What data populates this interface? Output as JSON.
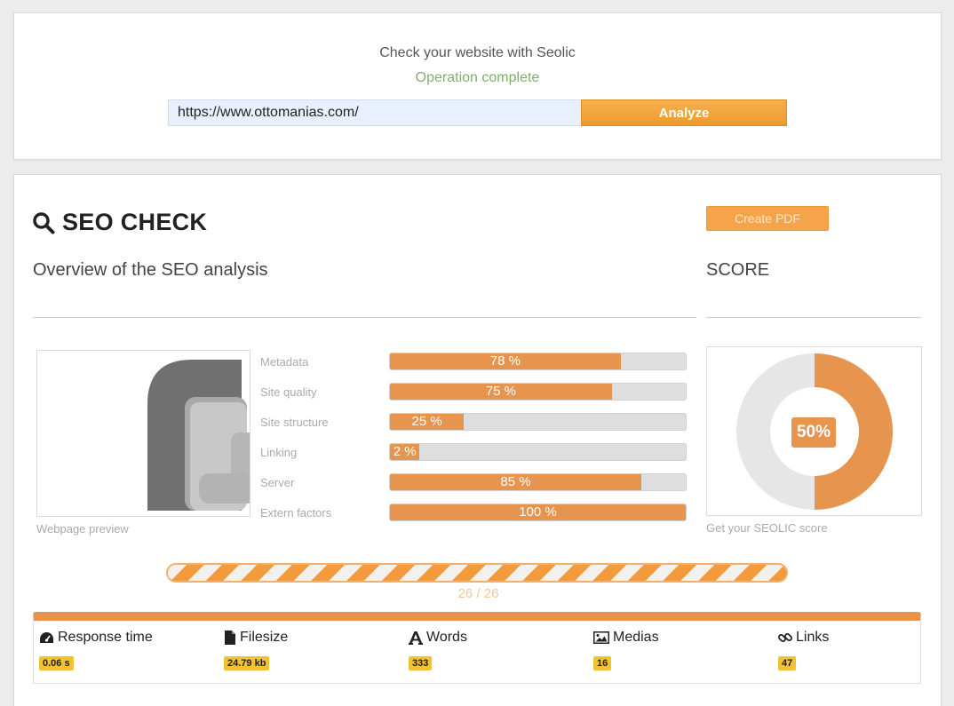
{
  "header": {
    "title": "Check your website with Seolic",
    "status": "Operation complete",
    "url_value": "https://www.ottomanias.com/",
    "analyze_label": "Analyze"
  },
  "seo": {
    "heading": "SEO CHECK",
    "create_pdf_label": "Create PDF",
    "overview_subtitle": "Overview of the SEO analysis",
    "score_title": "SCORE",
    "preview_caption": "Webpage preview",
    "score_caption": "Get your SEOLIC score",
    "score_value": "50%",
    "score_fraction": 0.5,
    "metrics": [
      {
        "label": "Metadata",
        "value": 78,
        "text": "78 %"
      },
      {
        "label": "Site quality",
        "value": 75,
        "text": "75 %"
      },
      {
        "label": "Site structure",
        "value": 25,
        "text": "25 %"
      },
      {
        "label": "Linking",
        "value": 2,
        "text": "2 %"
      },
      {
        "label": "Server",
        "value": 85,
        "text": "85 %"
      },
      {
        "label": "Extern factors",
        "value": 100,
        "text": "100 %"
      }
    ],
    "progress": {
      "done": 26,
      "total": 26,
      "text": "26 / 26"
    }
  },
  "stats": [
    {
      "label": "Response time",
      "value": "0.06 s",
      "icon": "tachometer-icon"
    },
    {
      "label": "Filesize",
      "value": "24.79 kb",
      "icon": "file-icon"
    },
    {
      "label": "Words",
      "value": "333",
      "icon": "font-icon"
    },
    {
      "label": "Medias",
      "value": "16",
      "icon": "image-icon"
    },
    {
      "label": "Links",
      "value": "47",
      "icon": "link-icon"
    }
  ],
  "colors": {
    "accent": "#e6944e",
    "button": "#ef9a2c",
    "badge": "#f1c232",
    "status_green": "#7fb069"
  }
}
